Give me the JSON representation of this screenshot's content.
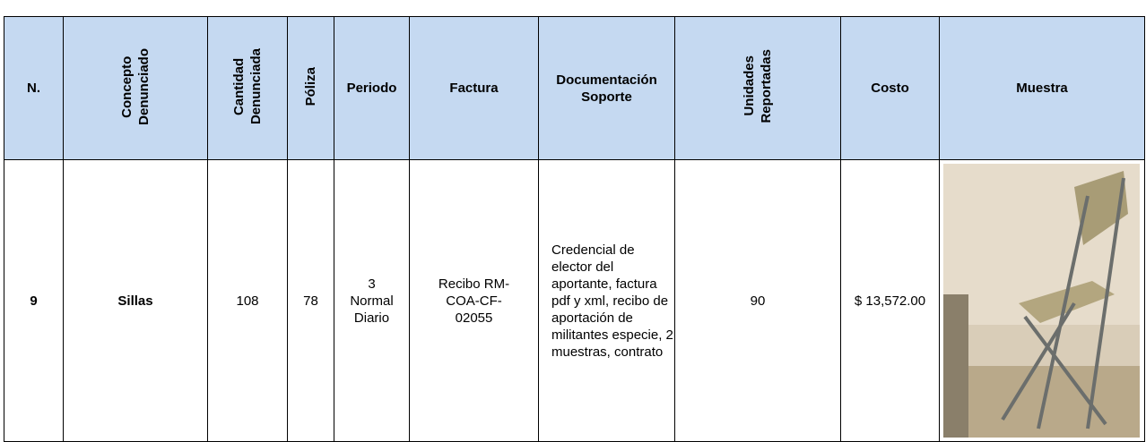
{
  "table": {
    "header": [
      [
        "N."
      ],
      [
        "Concepto",
        "Denunciado"
      ],
      [
        "Cantidad",
        "Denunciada"
      ],
      [
        "Póliza"
      ],
      [
        "Periodo"
      ],
      [
        "Factura"
      ],
      [
        "Documentación",
        "Soporte"
      ],
      [
        "Unidades",
        "Reportadas"
      ],
      [
        "Costo"
      ],
      [
        "Muestra"
      ]
    ],
    "row": {
      "numero": 9,
      "concepto": "Sillas",
      "cantidad": 108,
      "poliza": 78,
      "periodo": [
        "3",
        "Normal",
        "Diario"
      ],
      "factura": [
        "Recibo RM-",
        "COA-CF-",
        "02055"
      ],
      "documentacion": [
        "Credencial de",
        "elector del",
        "aportante, factura",
        "pdf y xml, recibo de",
        "aportación de",
        "militantes especie, 2",
        "muestras, contrato"
      ],
      "unidades": 90,
      "costo": "$ 13,572.00"
    }
  }
}
